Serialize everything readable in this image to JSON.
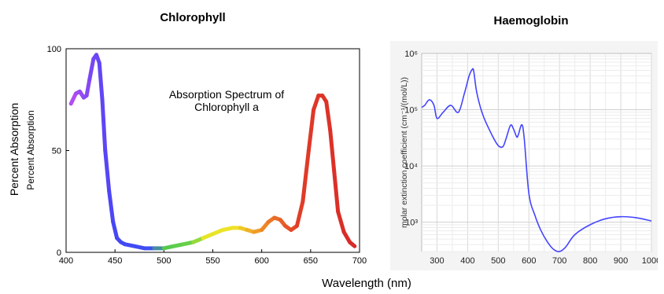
{
  "page": {
    "left_title": "Chlorophyll",
    "right_title": "Haemoglobin",
    "shared_xlabel": "Wavelength (nm)"
  },
  "chart_data": [
    {
      "type": "line",
      "title": "Chlorophyll",
      "annotation": [
        "Absorption Spectrum of",
        "Chlorophyll a"
      ],
      "ylabel_outer": "Percent Absorption",
      "ylabel_inner": "Percent Absorption",
      "xlabel": "Wavelength (nm)",
      "xlim": [
        400,
        700
      ],
      "ylim": [
        0,
        100
      ],
      "xticks": [
        400,
        450,
        500,
        550,
        600,
        650,
        700
      ],
      "yticks": [
        0,
        50,
        100
      ],
      "grid": false,
      "line_colored_by_wavelength": true,
      "series": [
        {
          "x": [
            405,
            410,
            414,
            418,
            421,
            424,
            428,
            431,
            434,
            437,
            440,
            444,
            448,
            452,
            456,
            460,
            470,
            480,
            490,
            500,
            510,
            520,
            530,
            540,
            550,
            560,
            570,
            578,
            585,
            592,
            600,
            607,
            613,
            619,
            624,
            630,
            636,
            642,
            648,
            653,
            658,
            662,
            666,
            670,
            674,
            678,
            684,
            690,
            695
          ],
          "y": [
            73,
            78,
            79,
            76,
            77,
            85,
            95,
            97,
            93,
            75,
            50,
            30,
            15,
            7,
            5,
            4,
            3,
            2,
            2,
            2,
            3,
            4,
            5,
            7,
            9,
            11,
            12,
            12,
            11,
            10,
            11,
            15,
            17,
            16,
            13,
            11,
            13,
            25,
            50,
            70,
            77,
            77,
            74,
            60,
            40,
            20,
            10,
            5,
            3
          ]
        }
      ]
    },
    {
      "type": "line",
      "title": "Haemoglobin",
      "ylabel": "molar extinction coefficient (cm⁻¹/(mol/L))",
      "xlabel": "Wavelength (nm)",
      "xlim": [
        250,
        1000
      ],
      "ylim": [
        300,
        1000000
      ],
      "yscale": "log",
      "xticks": [
        300,
        400,
        500,
        600,
        700,
        800,
        900,
        1000
      ],
      "yticks": [
        "10³",
        "10⁴",
        "10⁵",
        "10⁶"
      ],
      "grid": true,
      "line_color": "#4444ff",
      "series": [
        {
          "x": [
            250,
            260,
            275,
            290,
            300,
            320,
            345,
            370,
            390,
            405,
            415,
            420,
            430,
            450,
            480,
            500,
            515,
            525,
            540,
            550,
            560,
            565,
            577,
            585,
            600,
            620,
            640,
            660,
            680,
            700,
            720,
            750,
            800,
            850,
            900,
            950,
            1000
          ],
          "y": [
            110000,
            120000,
            150000,
            120000,
            70000,
            90000,
            120000,
            90000,
            200000,
            400000,
            520000,
            480000,
            200000,
            80000,
            35000,
            23000,
            22000,
            30000,
            53000,
            45000,
            33000,
            35000,
            54000,
            30000,
            3200,
            1300,
            700,
            450,
            330,
            300,
            360,
            600,
            900,
            1150,
            1250,
            1200,
            1050
          ]
        }
      ]
    }
  ]
}
